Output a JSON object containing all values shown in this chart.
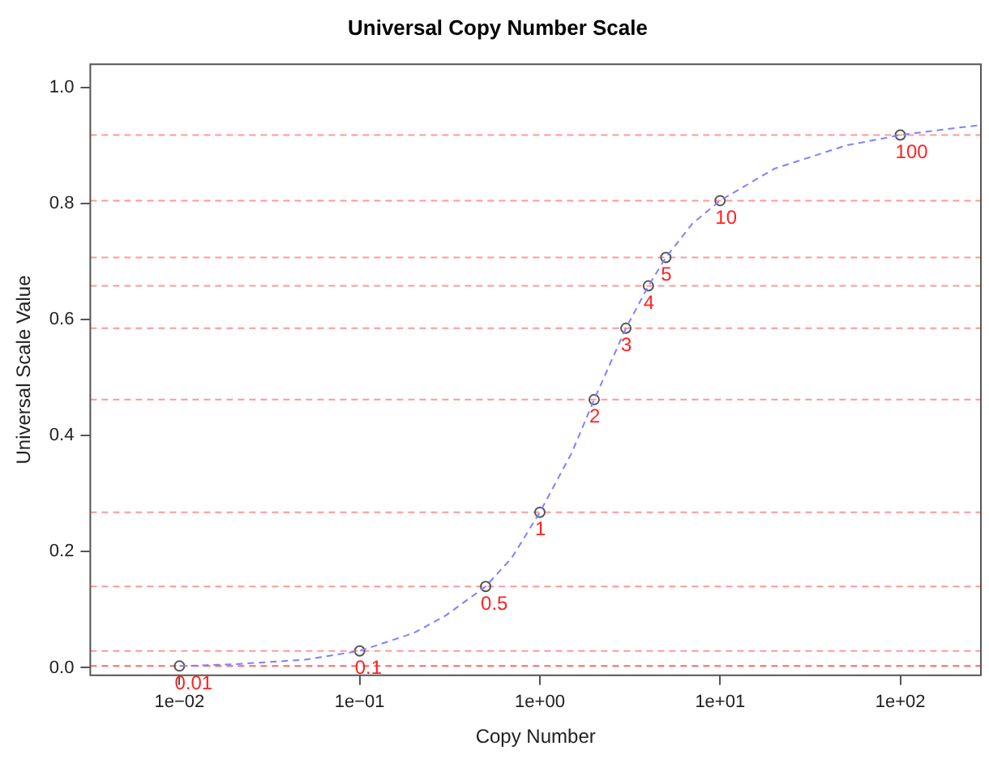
{
  "chart_data": {
    "type": "line",
    "title": "Universal Copy Number Scale",
    "xlabel": "Copy Number",
    "ylabel": "Universal Scale Value",
    "log": "x",
    "grid": false,
    "legend": false,
    "xlim": [
      0.0032,
      280
    ],
    "ylim": [
      -0.013,
      1.04
    ],
    "xticks": [
      {
        "value": 0.01,
        "label": "1e−02"
      },
      {
        "value": 0.1,
        "label": "1e−01"
      },
      {
        "value": 1,
        "label": "1e+00"
      },
      {
        "value": 10,
        "label": "1e+01"
      },
      {
        "value": 100,
        "label": "1e+02"
      }
    ],
    "yticks": [
      {
        "value": 0,
        "label": "0.0"
      },
      {
        "value": 0.2,
        "label": "0.2"
      },
      {
        "value": 0.4,
        "label": "0.4"
      },
      {
        "value": 0.6,
        "label": "0.6"
      },
      {
        "value": 0.8,
        "label": "0.8"
      },
      {
        "value": 1,
        "label": "1.0"
      }
    ],
    "series": [
      {
        "type": "line",
        "color": "#8080ff",
        "line_style": "dashed",
        "marker": "none",
        "x": [
          0.01,
          0.02,
          0.05,
          0.1,
          0.2,
          0.3,
          0.5,
          0.7,
          1,
          1.5,
          2,
          3,
          4,
          5,
          7,
          10,
          20,
          50,
          100,
          200,
          280
        ],
        "values": [
          0.003,
          0.006,
          0.014,
          0.029,
          0.06,
          0.09,
          0.14,
          0.19,
          0.268,
          0.37,
          0.462,
          0.585,
          0.658,
          0.707,
          0.765,
          0.805,
          0.86,
          0.9,
          0.918,
          0.93,
          0.935
        ]
      },
      {
        "type": "scatter",
        "color": "#555555",
        "marker": "circle",
        "x": [
          0.01,
          0.1,
          0.5,
          1,
          2,
          3,
          4,
          5,
          10,
          100
        ],
        "values": [
          0.003,
          0.029,
          0.14,
          0.268,
          0.462,
          0.585,
          0.658,
          0.707,
          0.805,
          0.918
        ]
      }
    ],
    "ref_lines": [
      {
        "axis": "y",
        "value": 0.003,
        "color": "#ff6666",
        "line_style": "dashed"
      },
      {
        "axis": "y",
        "value": 0.029,
        "color": "#ff9999",
        "line_style": "dashed"
      },
      {
        "axis": "y",
        "value": 0.14,
        "color": "#ff9999",
        "line_style": "dashed"
      },
      {
        "axis": "y",
        "value": 0.268,
        "color": "#ff9999",
        "line_style": "dashed"
      },
      {
        "axis": "y",
        "value": 0.462,
        "color": "#ff9999",
        "line_style": "dashed"
      },
      {
        "axis": "y",
        "value": 0.585,
        "color": "#ff9999",
        "line_style": "dashed"
      },
      {
        "axis": "y",
        "value": 0.658,
        "color": "#ff9999",
        "line_style": "dashed"
      },
      {
        "axis": "y",
        "value": 0.707,
        "color": "#ff9999",
        "line_style": "dashed"
      },
      {
        "axis": "y",
        "value": 0.805,
        "color": "#ff9999",
        "line_style": "dashed"
      },
      {
        "axis": "y",
        "value": 0.918,
        "color": "#ff9999",
        "line_style": "dashed"
      }
    ],
    "annotations": [
      {
        "text": "0.01",
        "x": 0.01,
        "y": 0.003
      },
      {
        "text": "0.1",
        "x": 0.1,
        "y": 0.029
      },
      {
        "text": "0.5",
        "x": 0.5,
        "y": 0.14
      },
      {
        "text": "1",
        "x": 1,
        "y": 0.268
      },
      {
        "text": "2",
        "x": 2,
        "y": 0.462
      },
      {
        "text": "3",
        "x": 3,
        "y": 0.585
      },
      {
        "text": "4",
        "x": 4,
        "y": 0.658
      },
      {
        "text": "5",
        "x": 5,
        "y": 0.707
      },
      {
        "text": "10",
        "x": 10,
        "y": 0.805
      },
      {
        "text": "100",
        "x": 100,
        "y": 0.918
      }
    ]
  }
}
